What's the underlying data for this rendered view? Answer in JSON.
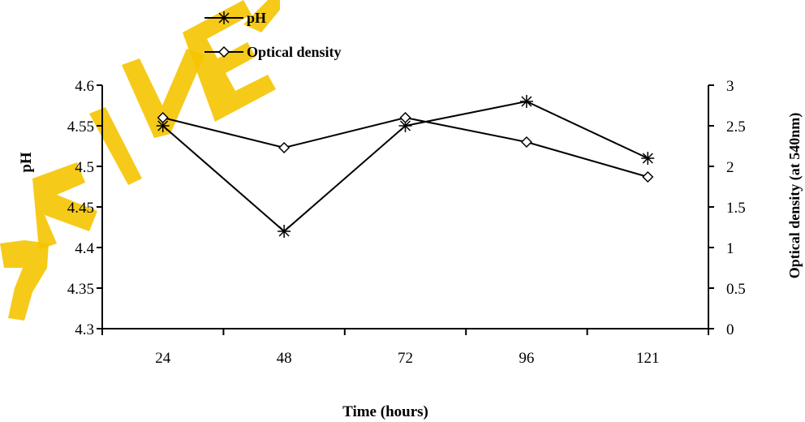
{
  "chart_data": {
    "type": "line",
    "title": "",
    "xlabel": "Time (hours)",
    "ylabel": "pH",
    "y2label": "Optical density (at 540nm)",
    "categories": [
      "24",
      "48",
      "72",
      "96",
      "121"
    ],
    "ylim": [
      4.3,
      4.6
    ],
    "yticks": [
      "4.3",
      "4.35",
      "4.4",
      "4.45",
      "4.5",
      "4.55",
      "4.6"
    ],
    "y2lim": [
      0,
      3
    ],
    "y2ticks": [
      "0",
      "0.5",
      "1",
      "1.5",
      "2",
      "2.5",
      "3"
    ],
    "grid": false,
    "legend_position": "top-left",
    "series": [
      {
        "name": "pH",
        "axis": "left",
        "marker": "asterisk",
        "values": [
          4.55,
          4.42,
          4.55,
          4.58,
          4.51
        ]
      },
      {
        "name": "Optical density",
        "axis": "right",
        "marker": "diamond",
        "values": [
          2.6,
          2.23,
          2.6,
          2.3,
          1.87
        ]
      }
    ],
    "colors": {
      "line": "#000000",
      "watermark": "#f5c400"
    }
  }
}
